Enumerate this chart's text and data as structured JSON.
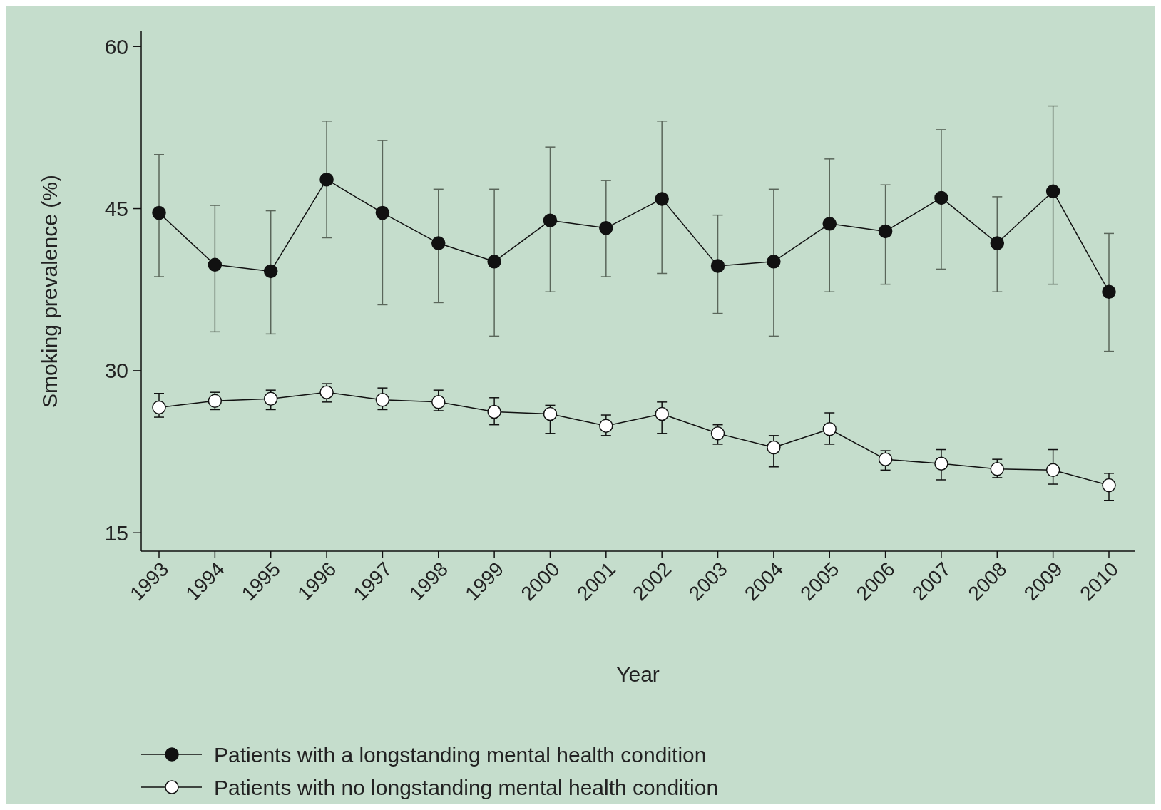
{
  "chart_data": {
    "type": "line",
    "xlabel": "Year",
    "ylabel": "Smoking prevalence (%)",
    "categories": [
      "1993",
      "1994",
      "1995",
      "1996",
      "1997",
      "1998",
      "1999",
      "2000",
      "2001",
      "2002",
      "2003",
      "2004",
      "2005",
      "2006",
      "2007",
      "2008",
      "2009",
      "2010"
    ],
    "ylim": [
      13.3,
      61.4
    ],
    "yticks": [
      15,
      30,
      45,
      60
    ],
    "grid": false,
    "legend": "bottom",
    "marker": "circle",
    "line_style": "solid",
    "series": [
      {
        "name": "Patients with a longstanding mental health condition",
        "color": "#111111",
        "values": [
          44.6,
          39.8,
          39.2,
          47.7,
          44.6,
          41.8,
          40.1,
          43.9,
          43.2,
          45.9,
          39.7,
          40.1,
          43.6,
          42.9,
          46.0,
          41.8,
          46.6,
          37.3
        ],
        "errors": [
          [
            38.7,
            50.0
          ],
          [
            33.6,
            45.3
          ],
          [
            33.4,
            44.8
          ],
          [
            42.3,
            53.1
          ],
          [
            36.1,
            51.3
          ],
          [
            36.3,
            46.8
          ],
          [
            33.2,
            46.8
          ],
          [
            37.3,
            50.7
          ],
          [
            38.7,
            47.6
          ],
          [
            39.0,
            53.1
          ],
          [
            35.3,
            44.4
          ],
          [
            33.2,
            46.8
          ],
          [
            37.3,
            49.6
          ],
          [
            38.0,
            47.2
          ],
          [
            39.4,
            52.3
          ],
          [
            37.3,
            46.1
          ],
          [
            38.0,
            54.5
          ],
          [
            31.8,
            42.7
          ]
        ]
      },
      {
        "name": "Patients with no longstanding mental health condition",
        "color": "#ffffff",
        "values": [
          26.6,
          27.2,
          27.4,
          28.0,
          27.3,
          27.1,
          26.2,
          26.0,
          24.9,
          26.0,
          24.2,
          22.9,
          24.6,
          21.8,
          21.4,
          20.9,
          20.8,
          19.4
        ],
        "errors": [
          [
            25.7,
            27.9
          ],
          [
            26.4,
            28.0
          ],
          [
            26.4,
            28.2
          ],
          [
            27.1,
            28.8
          ],
          [
            26.4,
            28.4
          ],
          [
            26.3,
            28.2
          ],
          [
            25.0,
            27.5
          ],
          [
            24.2,
            26.8
          ],
          [
            24.0,
            25.9
          ],
          [
            24.2,
            27.1
          ],
          [
            23.2,
            25.0
          ],
          [
            21.1,
            24.0
          ],
          [
            23.2,
            26.1
          ],
          [
            20.8,
            22.6
          ],
          [
            19.9,
            22.7
          ],
          [
            20.1,
            21.8
          ],
          [
            19.5,
            22.7
          ],
          [
            18.0,
            20.5
          ]
        ]
      }
    ]
  }
}
